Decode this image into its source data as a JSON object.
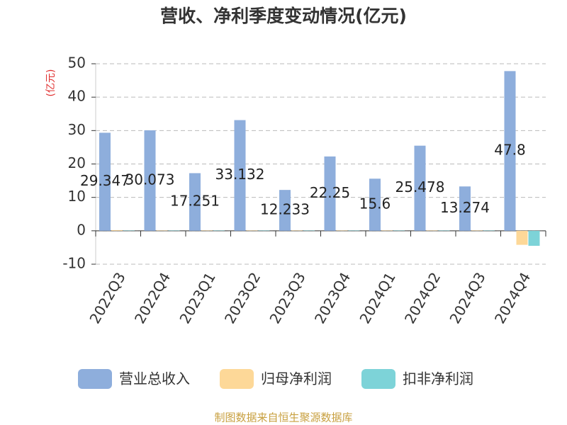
{
  "chart_data": {
    "type": "bar",
    "title": "营收、净利季度变动情况(亿元)",
    "y_label": "(亿元)",
    "categories": [
      "2022Q3",
      "2022Q4",
      "2023Q1",
      "2023Q2",
      "2023Q3",
      "2023Q4",
      "2024Q1",
      "2024Q2",
      "2024Q3",
      "2024Q4"
    ],
    "series": [
      {
        "name": "营业总收入",
        "color": "#8eaedc",
        "values": [
          29.347,
          30.073,
          17.251,
          33.132,
          12.233,
          22.25,
          15.6,
          25.478,
          13.274,
          47.8
        ]
      },
      {
        "name": "归母净利润",
        "color": "#fdd898",
        "values": [
          0.2,
          0.1,
          0.1,
          0.1,
          0.1,
          0.1,
          0.1,
          0.1,
          0.1,
          -4.2
        ]
      },
      {
        "name": "扣非净利润",
        "color": "#7dd3d8",
        "values": [
          0.1,
          0.1,
          0.1,
          0.1,
          0.1,
          0.1,
          0.1,
          0.1,
          0.1,
          -4.5
        ]
      }
    ],
    "ylim": [
      -10,
      50
    ],
    "yticks": [
      -10,
      0,
      10,
      20,
      30,
      40,
      50
    ],
    "grid": true,
    "legend": "bottom",
    "source": "制图数据来自恒生聚源数据库"
  }
}
